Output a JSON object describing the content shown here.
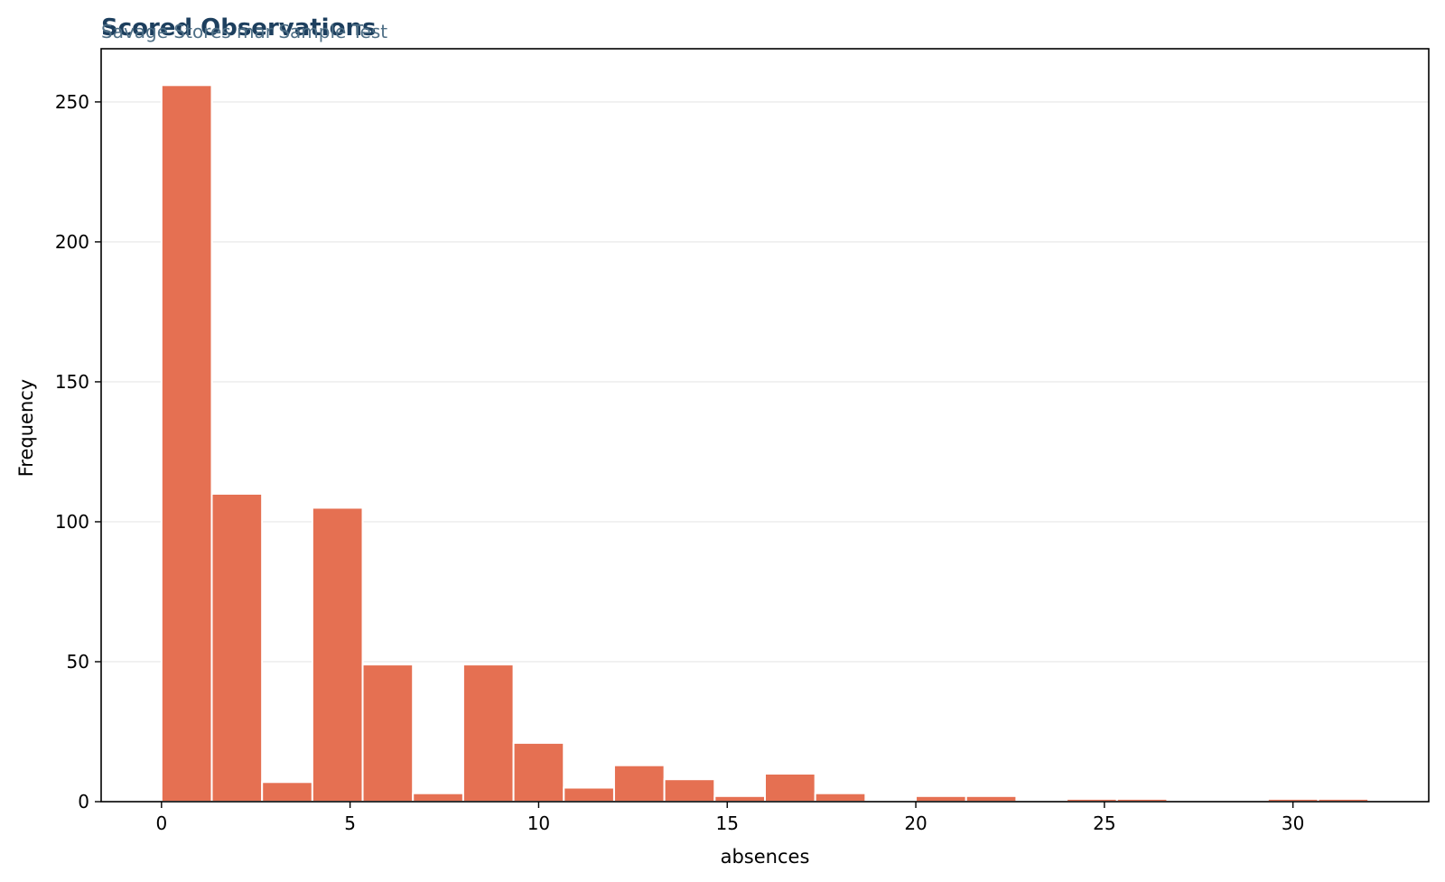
{
  "colors": {
    "bar": "#e57052",
    "bar_edge": "#ffffff",
    "title": "#1d3f5e",
    "subtitle": "#4f6f86",
    "grid": "#ebebeb"
  },
  "chart_data": {
    "type": "bar",
    "title": "Scored Observations",
    "subtitle": "Savage Stores mar Sample Test",
    "xlabel": "absences",
    "ylabel": "Frequency",
    "xlim": [
      -1.6,
      33.6
    ],
    "ylim": [
      0,
      269
    ],
    "xticks": [
      0,
      5,
      10,
      15,
      20,
      25,
      30
    ],
    "yticks": [
      0,
      50,
      100,
      150,
      200,
      250
    ],
    "grid": "horizontal",
    "bin_width": 1.333,
    "bins": [
      {
        "x0": 0.0,
        "count": 256
      },
      {
        "x0": 1.333,
        "count": 110
      },
      {
        "x0": 2.667,
        "count": 7
      },
      {
        "x0": 4.0,
        "count": 105
      },
      {
        "x0": 5.333,
        "count": 49
      },
      {
        "x0": 6.667,
        "count": 3
      },
      {
        "x0": 8.0,
        "count": 49
      },
      {
        "x0": 9.333,
        "count": 21
      },
      {
        "x0": 10.667,
        "count": 5
      },
      {
        "x0": 12.0,
        "count": 13
      },
      {
        "x0": 13.333,
        "count": 8
      },
      {
        "x0": 14.667,
        "count": 2
      },
      {
        "x0": 16.0,
        "count": 10
      },
      {
        "x0": 17.333,
        "count": 3
      },
      {
        "x0": 18.667,
        "count": 0
      },
      {
        "x0": 20.0,
        "count": 2
      },
      {
        "x0": 21.333,
        "count": 2
      },
      {
        "x0": 22.667,
        "count": 0
      },
      {
        "x0": 24.0,
        "count": 1
      },
      {
        "x0": 25.333,
        "count": 1
      },
      {
        "x0": 26.667,
        "count": 0
      },
      {
        "x0": 28.0,
        "count": 0
      },
      {
        "x0": 29.333,
        "count": 1
      },
      {
        "x0": 30.667,
        "count": 1
      }
    ]
  }
}
